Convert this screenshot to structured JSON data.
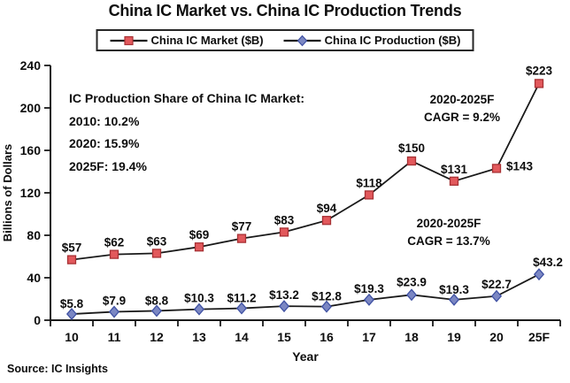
{
  "title": "China IC Market vs. China IC Production Trends",
  "legend": {
    "market": {
      "label": "China IC Market ($B)"
    },
    "production": {
      "label": "China IC Production ($B)"
    }
  },
  "chart_data": {
    "type": "line",
    "categories": [
      "10",
      "11",
      "12",
      "13",
      "14",
      "15",
      "16",
      "17",
      "18",
      "19",
      "20",
      "25F"
    ],
    "series": [
      {
        "name": "China IC Market ($B)",
        "values": [
          57,
          62,
          63,
          69,
          77,
          83,
          94,
          118,
          150,
          131,
          143,
          223
        ],
        "labels": [
          "$57",
          "$62",
          "$63",
          "$69",
          "$77",
          "$83",
          "$94",
          "$118",
          "$150",
          "$131",
          "$143",
          "$223"
        ],
        "marker": "square",
        "marker_color": "#e2595c",
        "marker_border": "#a83134",
        "line_color": "#1a1a1a"
      },
      {
        "name": "China IC Production ($B)",
        "values": [
          5.8,
          7.9,
          8.8,
          10.3,
          11.2,
          13.2,
          12.8,
          19.3,
          23.9,
          19.3,
          22.7,
          43.2
        ],
        "labels": [
          "$5.8",
          "$7.9",
          "$8.8",
          "$10.3",
          "$11.2",
          "$13.2",
          "$12.8",
          "$19.3",
          "$23.9",
          "$19.3",
          "$22.7",
          "$43.2"
        ],
        "marker": "diamond",
        "marker_color": "#7b87c3",
        "marker_border": "#3f51a3",
        "line_color": "#1a1a1a"
      }
    ],
    "xlabel": "Year",
    "ylabel": "Billions of Dollars",
    "ylim": [
      0,
      240
    ],
    "yticks": [
      0,
      40,
      80,
      120,
      160,
      200,
      240
    ],
    "grid": "off",
    "legend_position": "top"
  },
  "annotations": {
    "share": {
      "title": "IC Production Share of China IC Market:",
      "lines": [
        "2010: 10.2%",
        "2020: 15.9%",
        "2025F: 19.4%"
      ]
    },
    "cagr_market": {
      "line1": "2020-2025F",
      "line2": "CAGR = 9.2%"
    },
    "cagr_production": {
      "line1": "2020-2025F",
      "line2": "CAGR = 13.7%"
    }
  },
  "source": "Source: IC Insights"
}
